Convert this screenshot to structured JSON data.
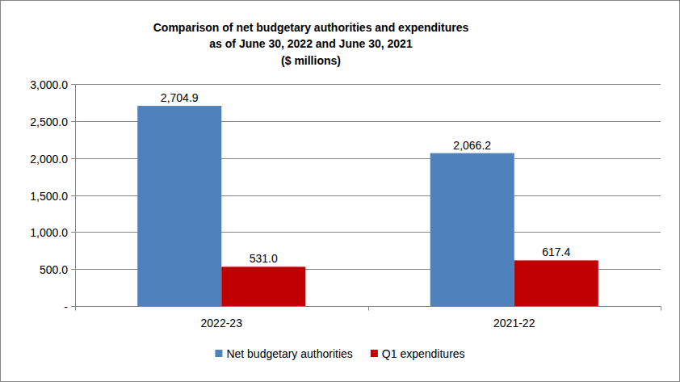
{
  "chart_data": {
    "type": "bar",
    "title": [
      "Comparison of net budgetary authorities and expenditures",
      "as of June 30, 2022 and June 30, 2021",
      "($ millions)"
    ],
    "categories": [
      "2022-23",
      "2021-22"
    ],
    "series": [
      {
        "name": "Net budgetary authorities",
        "color": "#4f81bd",
        "values": [
          2704.9,
          2066.2
        ],
        "value_labels": [
          "2,704.9",
          "2,066.2"
        ]
      },
      {
        "name": "Q1 expenditures",
        "color": "#c00000",
        "values": [
          531.0,
          617.4
        ],
        "value_labels": [
          "531.0",
          "617.4"
        ]
      }
    ],
    "ylim": [
      0,
      3000
    ],
    "yticks": [
      {
        "value": 0,
        "label": "-"
      },
      {
        "value": 500,
        "label": "500.0"
      },
      {
        "value": 1000,
        "label": "1,000.0"
      },
      {
        "value": 1500,
        "label": "1,500.0"
      },
      {
        "value": 2000,
        "label": "2,000.0"
      },
      {
        "value": 2500,
        "label": "2,500.0"
      },
      {
        "value": 3000,
        "label": "3,000.0"
      }
    ],
    "grid": true,
    "legend": "bottom",
    "data_labels": true
  }
}
